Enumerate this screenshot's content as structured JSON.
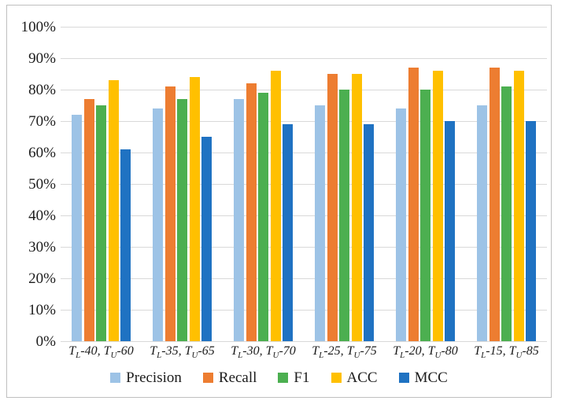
{
  "figure": {
    "border_color": "#bfbfbf",
    "gridline_color": "#d9d9d9",
    "background": "#ffffff"
  },
  "chart_data": {
    "type": "bar",
    "title": "",
    "xlabel": "",
    "ylabel": "",
    "categories": [
      "T_L-40, T_U-60",
      "T_L-35, T_U-65",
      "T_L-30, T_U-70",
      "T_L-25, T_U-75",
      "T_L-20, T_U-80",
      "T_L-15, T_U-85"
    ],
    "series": [
      {
        "name": "Precision",
        "color": "#9DC3E6",
        "values": [
          72,
          74,
          77,
          75,
          74,
          75
        ]
      },
      {
        "name": "Recall",
        "color": "#ED7D31",
        "values": [
          77,
          81,
          82,
          85,
          87,
          87
        ]
      },
      {
        "name": "F1",
        "color": "#4CAF50",
        "values": [
          75,
          77,
          79,
          80,
          80,
          81
        ]
      },
      {
        "name": "ACC",
        "color": "#FFC000",
        "values": [
          83,
          84,
          86,
          85,
          86,
          86
        ]
      },
      {
        "name": "MCC",
        "color": "#1F72C2",
        "values": [
          61,
          65,
          69,
          69,
          70,
          70
        ]
      }
    ],
    "y_axis": {
      "min": 0,
      "max": 100,
      "step": 10,
      "tick_labels": [
        "0%",
        "10%",
        "20%",
        "30%",
        "40%",
        "50%",
        "60%",
        "70%",
        "80%",
        "90%",
        "100%"
      ]
    },
    "grid": true,
    "legend_position": "bottom"
  }
}
